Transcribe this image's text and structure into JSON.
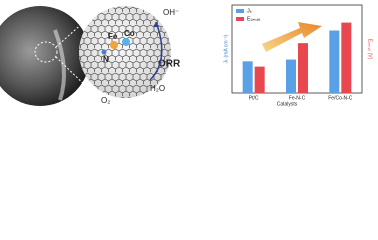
{
  "labels": {
    "fe": "Fe",
    "co": "Co",
    "n": "N",
    "oh": "OH⁻",
    "orr": "ORR",
    "h2o": "H₂O",
    "o2": "O₂"
  },
  "chart_data": {
    "type": "bar",
    "x_label": "Catalysts",
    "y_label": "Jₖ (mA cm⁻²)",
    "y2_label": "Eₒₙₛₑₜ (V)",
    "categories": [
      "Pt/C",
      "Fe-N-C",
      "Fe/Co-N-C"
    ],
    "series": [
      {
        "name": "Jₖ",
        "color": "#5aa0e6",
        "values": [
          3.6,
          3.8,
          7.1
        ]
      },
      {
        "name": "Eₒₙₛₑₜ",
        "color": "#e8474f",
        "axis": "y2",
        "values": [
          0.79,
          0.87,
          0.94
        ]
      }
    ],
    "ylim": [
      0,
      10
    ],
    "y2lim": [
      0.7,
      1.0
    ],
    "legend": "upper left"
  }
}
